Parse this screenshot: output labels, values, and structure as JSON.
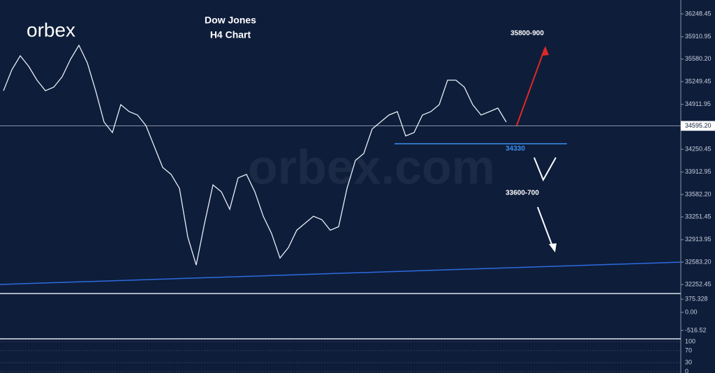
{
  "brand": "orbex",
  "watermark": "orbex.com",
  "chart_data": {
    "type": "line",
    "title": "Dow Jones",
    "subtitle": "H4 Chart",
    "color": "#e8eef6",
    "values": [
      35115,
      35424,
      35630,
      35476,
      35270,
      35115,
      35167,
      35321,
      35579,
      35785,
      35527,
      35115,
      34652,
      34497,
      34909,
      34806,
      34755,
      34600,
      34291,
      33982,
      33879,
      33673,
      32952,
      32540,
      33158,
      33724,
      33622,
      33364,
      33828,
      33879,
      33622,
      33261,
      33004,
      32643,
      32798,
      33055,
      33158,
      33261,
      33210,
      33055,
      33107,
      33673,
      34085,
      34188,
      34549,
      34652,
      34755,
      34806,
      34446,
      34497,
      34755,
      34806,
      34909,
      35270,
      35270,
      35167,
      34909,
      34755,
      34806,
      34858,
      34652
    ],
    "ylim": [
      32130,
      36454
    ],
    "yticks": [
      36248.45,
      35910.95,
      {
        "value": 35580.2,
        "label": "35580.20"
      },
      35249.45,
      34911.95,
      34250.45,
      33912.95,
      {
        "value": 33582.2,
        "label": "33582.20"
      },
      33251.45,
      32913.95,
      {
        "value": 32583.2,
        "label": "32583.20"
      },
      32252.45
    ],
    "current_price": {
      "value": 34595.2,
      "label": "34595.20"
    },
    "support_level": 34330,
    "annotations": {
      "upper_target": "35800-900",
      "lower_target": "33600-700"
    },
    "macd_ticks": [
      375.328,
      {
        "value": 0,
        "label": "0.00"
      },
      -516.52
    ],
    "rsi_ticks": [
      100,
      70,
      30,
      0
    ]
  }
}
